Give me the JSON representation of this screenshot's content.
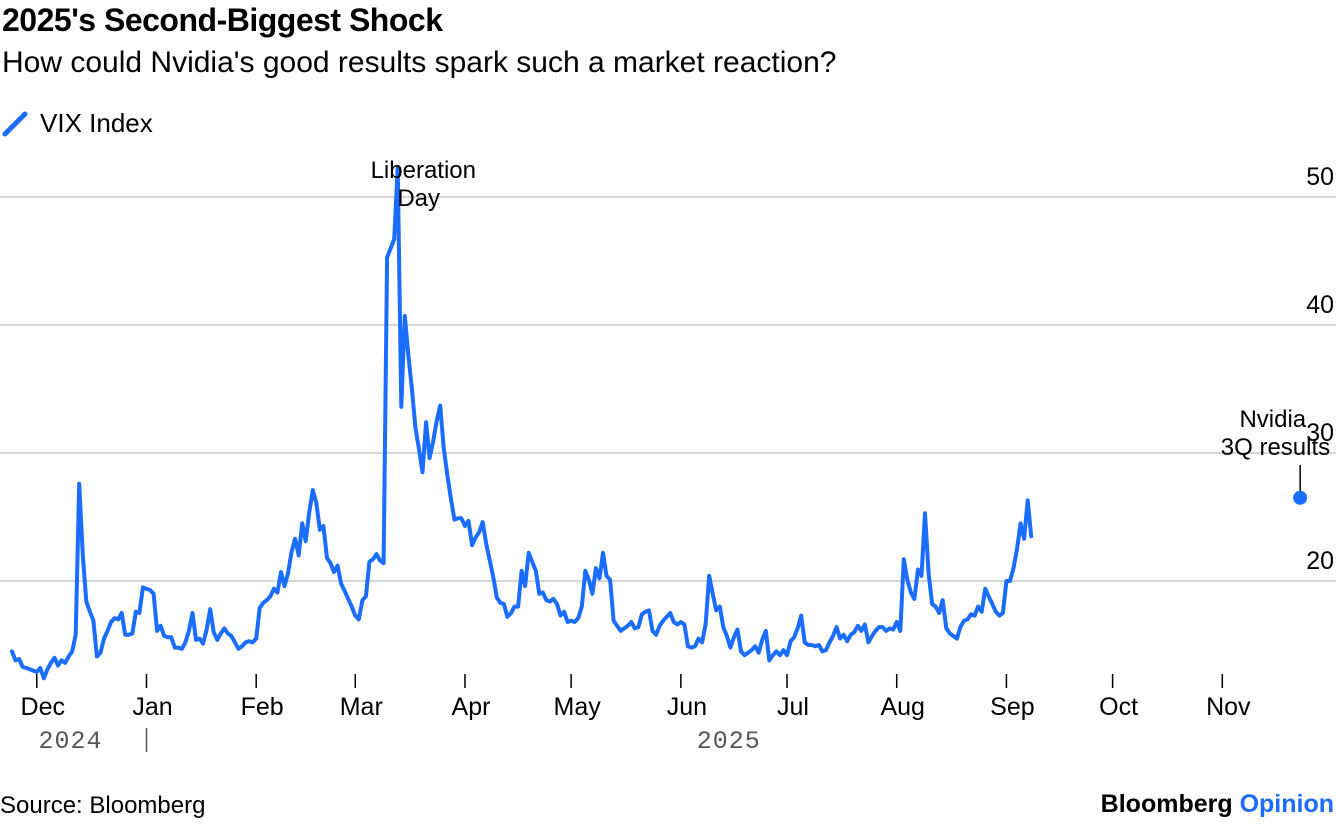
{
  "chart_data": {
    "type": "line",
    "title": "2025's Second-Biggest Shock",
    "subtitle": "How could Nvidia's good results spark such a market reaction?",
    "legend": "VIX Index",
    "series_color": "#1a6dff",
    "ylim": [
      10,
      53
    ],
    "yticks": [
      20,
      30,
      40,
      50
    ],
    "xlim": [
      0,
      360
    ],
    "month_ticks": [
      {
        "label": "Dec",
        "day": 7
      },
      {
        "label": "Jan",
        "day": 38
      },
      {
        "label": "Feb",
        "day": 69
      },
      {
        "label": "Mar",
        "day": 97
      },
      {
        "label": "Apr",
        "day": 128
      },
      {
        "label": "May",
        "day": 158
      },
      {
        "label": "Jun",
        "day": 189
      },
      {
        "label": "Jul",
        "day": 219
      },
      {
        "label": "Aug",
        "day": 250
      },
      {
        "label": "Sep",
        "day": 281
      },
      {
        "label": "Oct",
        "day": 311
      },
      {
        "label": "Nov",
        "day": 342
      }
    ],
    "year_labels": [
      {
        "label": "2024",
        "day": 12
      },
      {
        "label": "2025",
        "day": 198
      }
    ],
    "year_divider_day": 38,
    "annotations": [
      {
        "lines": [
          "Liberation",
          "Day"
        ],
        "day": 134,
        "value": 51
      },
      {
        "lines": [
          "Nvidia",
          "3Q results"
        ],
        "day": 364,
        "value": 26.5,
        "marker": true
      }
    ],
    "series": [
      {
        "name": "VIX Index",
        "points": [
          [
            0,
            14.5
          ],
          [
            1,
            13.8
          ],
          [
            2,
            13.9
          ],
          [
            3,
            13.3
          ],
          [
            4,
            13.2
          ],
          [
            5,
            13.1
          ],
          [
            6,
            13.0
          ],
          [
            7,
            12.9
          ],
          [
            8,
            13.2
          ],
          [
            9,
            12.4
          ],
          [
            10,
            13.1
          ],
          [
            11,
            13.6
          ],
          [
            12,
            14.0
          ],
          [
            13,
            13.4
          ],
          [
            14,
            13.8
          ],
          [
            15,
            13.6
          ],
          [
            16,
            14.1
          ],
          [
            17,
            14.5
          ],
          [
            18,
            15.8
          ],
          [
            19,
            27.6
          ],
          [
            20,
            22.0
          ],
          [
            21,
            18.4
          ],
          [
            22,
            17.6
          ],
          [
            23,
            16.9
          ],
          [
            24,
            14.1
          ],
          [
            25,
            14.4
          ],
          [
            26,
            15.5
          ],
          [
            27,
            16.1
          ],
          [
            28,
            16.8
          ],
          [
            29,
            17.1
          ],
          [
            30,
            17.0
          ],
          [
            31,
            17.5
          ],
          [
            32,
            15.8
          ],
          [
            33,
            15.8
          ],
          [
            34,
            15.9
          ],
          [
            35,
            17.6
          ],
          [
            36,
            17.5
          ],
          [
            37,
            19.5
          ],
          [
            38,
            19.4
          ],
          [
            39,
            19.3
          ],
          [
            40,
            19.0
          ],
          [
            41,
            16.1
          ],
          [
            42,
            16.5
          ],
          [
            43,
            15.7
          ],
          [
            44,
            15.6
          ],
          [
            45,
            15.6
          ],
          [
            46,
            14.8
          ],
          [
            47,
            14.8
          ],
          [
            48,
            14.7
          ],
          [
            49,
            15.2
          ],
          [
            50,
            16.1
          ],
          [
            51,
            17.5
          ],
          [
            52,
            15.4
          ],
          [
            53,
            15.5
          ],
          [
            54,
            15.1
          ],
          [
            55,
            16.2
          ],
          [
            56,
            17.8
          ],
          [
            57,
            16.0
          ],
          [
            58,
            15.4
          ],
          [
            59,
            15.9
          ],
          [
            60,
            16.3
          ],
          [
            61,
            15.9
          ],
          [
            62,
            15.7
          ],
          [
            63,
            15.2
          ],
          [
            64,
            14.7
          ],
          [
            65,
            14.9
          ],
          [
            66,
            15.2
          ],
          [
            67,
            15.3
          ],
          [
            68,
            15.2
          ],
          [
            69,
            15.5
          ],
          [
            70,
            17.9
          ],
          [
            71,
            18.3
          ],
          [
            72,
            18.5
          ],
          [
            73,
            18.8
          ],
          [
            74,
            19.4
          ],
          [
            75,
            19.1
          ],
          [
            76,
            20.7
          ],
          [
            77,
            19.6
          ],
          [
            78,
            20.6
          ],
          [
            79,
            22.3
          ],
          [
            80,
            23.3
          ],
          [
            81,
            22.0
          ],
          [
            82,
            24.5
          ],
          [
            83,
            23.1
          ],
          [
            84,
            25.4
          ],
          [
            85,
            27.1
          ],
          [
            86,
            26.1
          ],
          [
            87,
            24.0
          ],
          [
            88,
            24.3
          ],
          [
            89,
            21.8
          ],
          [
            90,
            21.4
          ],
          [
            91,
            20.7
          ],
          [
            92,
            21.2
          ],
          [
            93,
            19.8
          ],
          [
            94,
            19.2
          ],
          [
            95,
            18.6
          ],
          [
            96,
            18.0
          ],
          [
            97,
            17.3
          ],
          [
            98,
            17.0
          ],
          [
            99,
            18.5
          ],
          [
            100,
            18.8
          ],
          [
            101,
            21.5
          ],
          [
            102,
            21.7
          ],
          [
            103,
            22.1
          ],
          [
            104,
            21.6
          ],
          [
            105,
            21.4
          ],
          [
            106,
            45.3
          ],
          [
            107,
            46.0
          ],
          [
            108,
            46.7
          ],
          [
            109,
            52.3
          ],
          [
            110,
            33.6
          ],
          [
            111,
            40.7
          ],
          [
            112,
            37.6
          ],
          [
            113,
            35.0
          ],
          [
            114,
            32.0
          ],
          [
            115,
            30.3
          ],
          [
            116,
            28.5
          ],
          [
            117,
            32.4
          ],
          [
            118,
            29.6
          ],
          [
            119,
            30.9
          ],
          [
            120,
            32.5
          ],
          [
            121,
            33.7
          ],
          [
            122,
            30.4
          ],
          [
            123,
            28.3
          ],
          [
            124,
            26.5
          ],
          [
            125,
            24.8
          ],
          [
            126,
            24.9
          ],
          [
            127,
            24.9
          ],
          [
            128,
            24.3
          ],
          [
            129,
            24.7
          ],
          [
            130,
            22.8
          ],
          [
            131,
            23.4
          ],
          [
            132,
            23.8
          ],
          [
            133,
            24.6
          ],
          [
            134,
            22.9
          ],
          [
            135,
            21.6
          ],
          [
            136,
            20.3
          ],
          [
            137,
            18.7
          ],
          [
            138,
            18.3
          ],
          [
            139,
            18.2
          ],
          [
            140,
            17.2
          ],
          [
            141,
            17.5
          ],
          [
            142,
            18.0
          ],
          [
            143,
            18.0
          ],
          [
            144,
            20.8
          ],
          [
            145,
            19.6
          ],
          [
            146,
            22.2
          ],
          [
            147,
            21.5
          ],
          [
            148,
            20.8
          ],
          [
            149,
            19.0
          ],
          [
            150,
            19.1
          ],
          [
            151,
            18.5
          ],
          [
            152,
            18.4
          ],
          [
            153,
            18.6
          ],
          [
            154,
            18.2
          ],
          [
            155,
            17.3
          ],
          [
            156,
            17.6
          ],
          [
            157,
            16.8
          ],
          [
            158,
            16.9
          ],
          [
            159,
            16.8
          ],
          [
            160,
            17.1
          ],
          [
            161,
            18.0
          ],
          [
            162,
            20.8
          ],
          [
            163,
            20.1
          ],
          [
            164,
            19.0
          ],
          [
            165,
            21.0
          ],
          [
            166,
            20.2
          ],
          [
            167,
            22.2
          ],
          [
            168,
            20.4
          ],
          [
            169,
            20.1
          ],
          [
            170,
            16.9
          ],
          [
            171,
            16.5
          ],
          [
            172,
            16.1
          ],
          [
            173,
            16.3
          ],
          [
            174,
            16.5
          ],
          [
            175,
            16.8
          ],
          [
            176,
            16.3
          ],
          [
            177,
            16.4
          ],
          [
            178,
            17.4
          ],
          [
            179,
            17.6
          ],
          [
            180,
            17.7
          ],
          [
            181,
            16.1
          ],
          [
            182,
            15.8
          ],
          [
            183,
            16.5
          ],
          [
            184,
            16.9
          ],
          [
            185,
            17.2
          ],
          [
            186,
            17.5
          ],
          [
            187,
            16.8
          ],
          [
            188,
            16.6
          ],
          [
            189,
            16.8
          ],
          [
            190,
            16.6
          ],
          [
            191,
            14.9
          ],
          [
            192,
            14.8
          ],
          [
            193,
            14.9
          ],
          [
            194,
            15.5
          ],
          [
            195,
            15.2
          ],
          [
            196,
            16.6
          ],
          [
            197,
            20.4
          ],
          [
            198,
            19.0
          ],
          [
            199,
            17.7
          ],
          [
            200,
            18.0
          ],
          [
            201,
            16.4
          ],
          [
            202,
            15.7
          ],
          [
            203,
            14.8
          ],
          [
            204,
            15.6
          ],
          [
            205,
            16.2
          ],
          [
            206,
            14.5
          ],
          [
            207,
            14.2
          ],
          [
            208,
            14.4
          ],
          [
            209,
            14.6
          ],
          [
            210,
            14.9
          ],
          [
            211,
            14.4
          ],
          [
            212,
            15.4
          ],
          [
            213,
            16.1
          ],
          [
            214,
            13.8
          ],
          [
            215,
            14.2
          ],
          [
            216,
            14.5
          ],
          [
            217,
            14.2
          ],
          [
            218,
            14.6
          ],
          [
            219,
            14.2
          ],
          [
            220,
            15.3
          ],
          [
            221,
            15.6
          ],
          [
            222,
            16.3
          ],
          [
            223,
            17.3
          ],
          [
            224,
            15.2
          ],
          [
            225,
            15.0
          ],
          [
            226,
            15.0
          ],
          [
            227,
            14.9
          ],
          [
            228,
            15.0
          ],
          [
            229,
            14.5
          ],
          [
            230,
            14.6
          ],
          [
            231,
            15.2
          ],
          [
            232,
            15.7
          ],
          [
            233,
            16.4
          ],
          [
            234,
            15.5
          ],
          [
            235,
            15.8
          ],
          [
            236,
            15.3
          ],
          [
            237,
            15.8
          ],
          [
            238,
            16.0
          ],
          [
            239,
            16.5
          ],
          [
            240,
            16.1
          ],
          [
            241,
            16.6
          ],
          [
            242,
            15.2
          ],
          [
            243,
            15.7
          ],
          [
            244,
            16.1
          ],
          [
            245,
            16.4
          ],
          [
            246,
            16.4
          ],
          [
            247,
            16.1
          ],
          [
            248,
            16.3
          ],
          [
            249,
            16.2
          ],
          [
            250,
            16.8
          ],
          [
            251,
            16.1
          ],
          [
            252,
            21.7
          ],
          [
            253,
            20.1
          ],
          [
            254,
            19.1
          ],
          [
            255,
            18.6
          ],
          [
            256,
            20.9
          ],
          [
            257,
            20.4
          ],
          [
            258,
            25.3
          ],
          [
            259,
            20.6
          ],
          [
            260,
            18.2
          ],
          [
            261,
            18.0
          ],
          [
            262,
            17.5
          ],
          [
            263,
            18.5
          ],
          [
            264,
            16.3
          ],
          [
            265,
            15.9
          ],
          [
            266,
            15.7
          ],
          [
            267,
            15.5
          ],
          [
            268,
            16.4
          ],
          [
            269,
            16.9
          ],
          [
            270,
            17.0
          ],
          [
            271,
            17.4
          ],
          [
            272,
            17.3
          ],
          [
            273,
            18.0
          ],
          [
            274,
            17.6
          ],
          [
            275,
            19.4
          ],
          [
            276,
            18.8
          ],
          [
            277,
            18.2
          ],
          [
            278,
            17.6
          ],
          [
            279,
            17.3
          ],
          [
            280,
            17.5
          ],
          [
            281,
            20.0
          ],
          [
            282,
            20.0
          ],
          [
            283,
            21.0
          ],
          [
            284,
            22.5
          ],
          [
            285,
            24.5
          ],
          [
            286,
            23.3
          ],
          [
            287,
            26.3
          ],
          [
            288,
            23.5
          ]
        ]
      }
    ],
    "source": "Source: Bloomberg",
    "brand": {
      "name": "Bloomberg",
      "section": "Opinion"
    }
  }
}
